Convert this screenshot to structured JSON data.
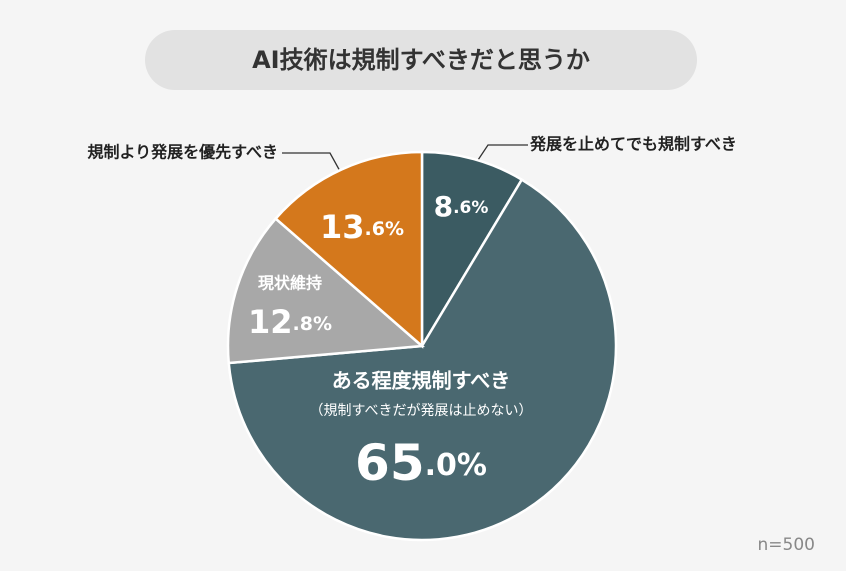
{
  "chart_data": {
    "type": "pie",
    "title": "AI技術は規制すべきだと思うか",
    "categories": [
      "発展を止めてでも規制すべき",
      "ある程度規制すべき",
      "現状維持",
      "規制より発展を優先すべき"
    ],
    "values": [
      8.6,
      65.0,
      12.8,
      13.6
    ],
    "value_labels": [
      "8.6%",
      "65.0%",
      "12.8%",
      "13.6%"
    ],
    "colors": [
      "#3b5b62",
      "#4a6870",
      "#a8a8a8",
      "#d4781c"
    ],
    "annotations": [
      "（規制すべきだが発展は止めない）"
    ],
    "note": "n=500"
  }
}
